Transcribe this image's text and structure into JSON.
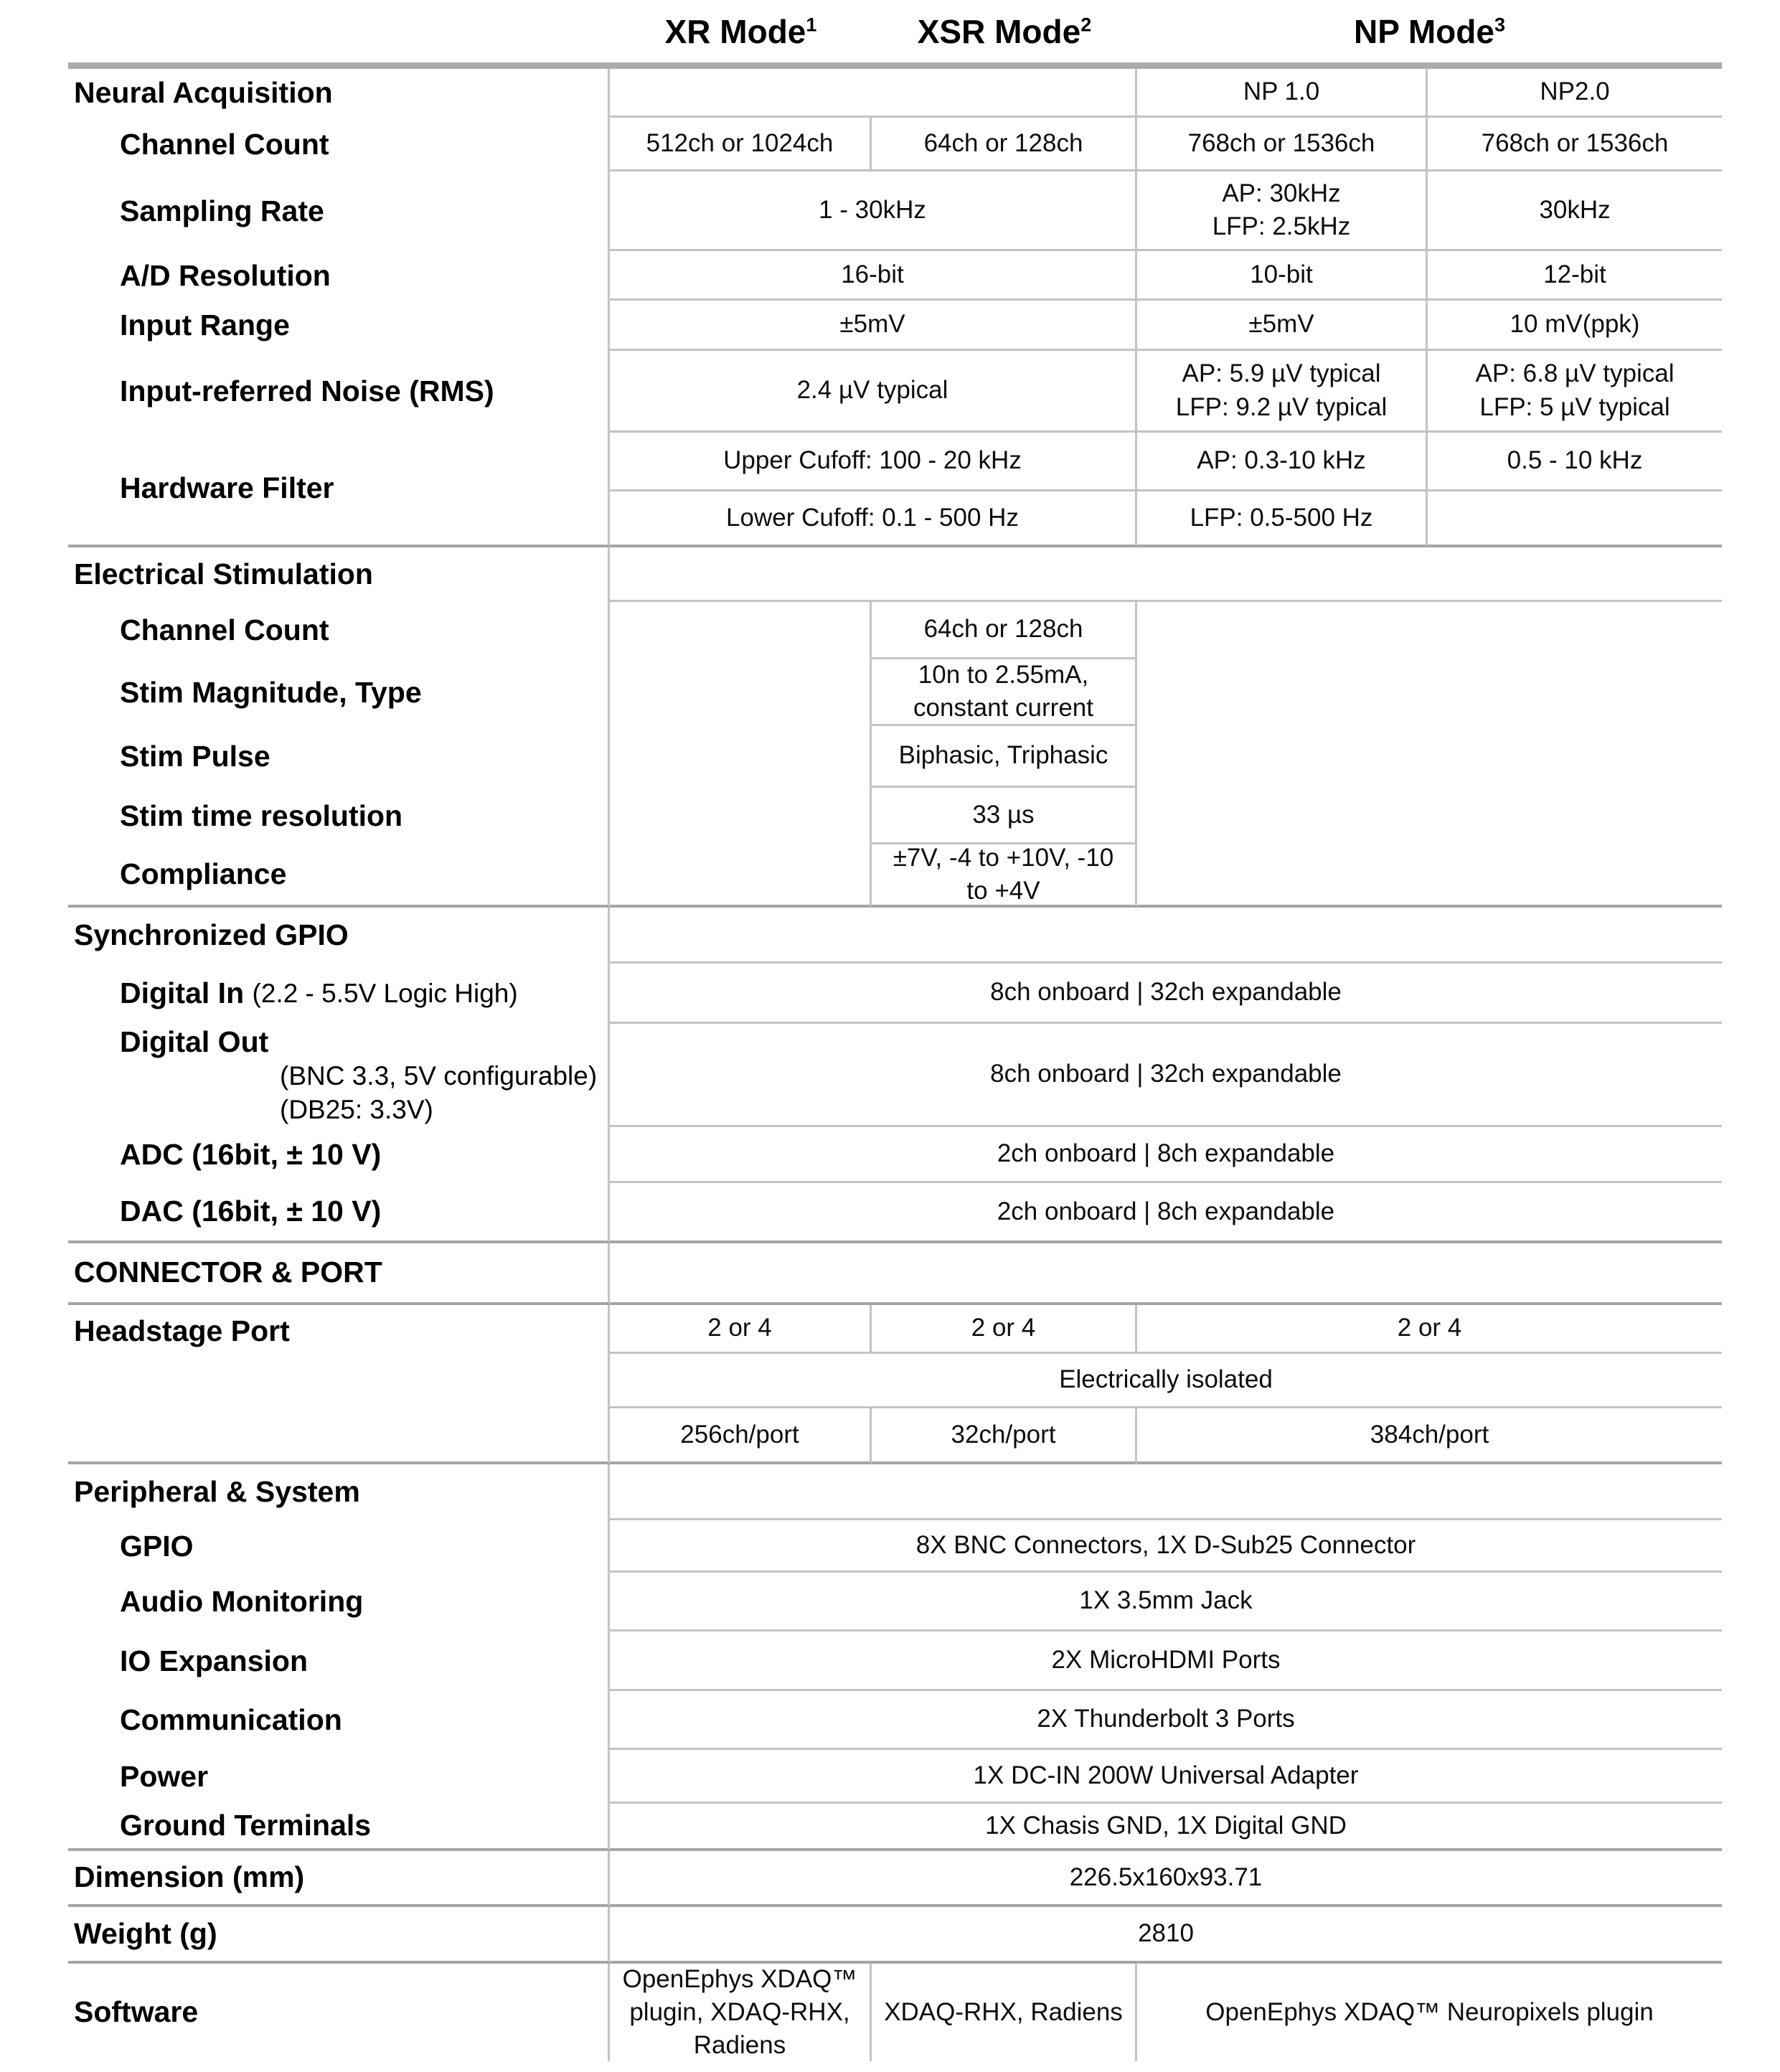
{
  "hdr": {
    "xr": {
      "t": "XR Mode",
      "sup": "1"
    },
    "xsr": {
      "t": "XSR Mode",
      "sup": "2"
    },
    "np": {
      "t": "NP Mode",
      "sup": "3"
    }
  },
  "na": {
    "title": "Neural Acquisition",
    "np1_col": "NP 1.0",
    "np2_col": "NP2.0",
    "channel_count": {
      "label": "Channel Count",
      "xr": "512ch or 1024ch",
      "xsr": "64ch or 128ch",
      "np1": "768ch or 1536ch",
      "np2": "768ch or 1536ch"
    },
    "sampling_rate": {
      "label": "Sampling Rate",
      "xr_xsr": "1 - 30kHz",
      "np1": "AP: 30kHz\nLFP: 2.5kHz",
      "np2": "30kHz"
    },
    "ad_resolution": {
      "label": "A/D Resolution",
      "xr_xsr": "16-bit",
      "np1": "10-bit",
      "np2": "12-bit"
    },
    "input_range": {
      "label": "Input Range",
      "xr_xsr": "±5mV",
      "np1": "±5mV",
      "np2": "10 mV(ppk)"
    },
    "input_noise": {
      "label": "Input-referred Noise (RMS)",
      "xr_xsr": "2.4 µV typical",
      "np1": "AP: 5.9 µV typical\nLFP: 9.2 µV typical",
      "np2": "AP: 6.8 µV typical\nLFP: 5 µV typical"
    },
    "hardware_filter": {
      "label": "Hardware Filter",
      "upper": {
        "xr_xsr": "Upper Cufoff: 100 - 20 kHz",
        "np1": "AP: 0.3-10 kHz",
        "np2": "0.5 - 10 kHz"
      },
      "lower": {
        "xr_xsr": "Lower Cufoff: 0.1 - 500 Hz",
        "np1": "LFP: 0.5-500 Hz"
      }
    }
  },
  "es": {
    "title": "Electrical Stimulation",
    "channel_count": {
      "label": "Channel Count",
      "xsr": "64ch or 128ch"
    },
    "stim_magnitude": {
      "label": "Stim Magnitude, Type",
      "xsr": "10n to 2.55mA,\nconstant current"
    },
    "stim_pulse": {
      "label": "Stim Pulse",
      "xsr": "Biphasic, Triphasic"
    },
    "stim_time": {
      "label": "Stim time resolution",
      "xsr": "33 µs"
    },
    "compliance": {
      "label": "Compliance",
      "xsr": "±7V, -4 to +10V, -10\nto +4V"
    }
  },
  "gpio": {
    "title": "Synchronized GPIO",
    "digital_in": {
      "label": "Digital In",
      "note": "(2.2 - 5.5V Logic High)",
      "value": "8ch onboard | 32ch expandable"
    },
    "digital_out": {
      "label": "Digital Out",
      "note1": "(BNC 3.3, 5V configurable)",
      "note2": "(DB25: 3.3V)",
      "value": "8ch onboard | 32ch expandable"
    },
    "adc": {
      "label": "ADC (16bit, ± 10 V)",
      "value": "2ch onboard | 8ch expandable"
    },
    "dac": {
      "label": "DAC (16bit, ± 10 V)",
      "value": "2ch onboard | 8ch expandable"
    }
  },
  "connector": {
    "title": "CONNECTOR & PORT"
  },
  "headstage": {
    "label": "Headstage Port",
    "port_count": {
      "xr": "2 or 4",
      "xsr": "2 or 4",
      "np": "2 or 4"
    },
    "isolation": "Electrically isolated",
    "channels": {
      "xr": "256ch/port",
      "xsr": "32ch/port",
      "np": "384ch/port"
    }
  },
  "periph": {
    "title": "Peripheral & System",
    "gpio": {
      "label": "GPIO",
      "value": "8X BNC Connectors, 1X D-Sub25 Connector"
    },
    "audio": {
      "label": "Audio Monitoring",
      "value": "1X 3.5mm Jack"
    },
    "io": {
      "label": "IO Expansion",
      "value": "2X MicroHDMI Ports"
    },
    "comm": {
      "label": "Communication",
      "value": "2X Thunderbolt 3 Ports"
    },
    "power": {
      "label": "Power",
      "value": "1X DC-IN 200W Universal Adapter"
    },
    "ground": {
      "label": "Ground Terminals",
      "value": "1X Chasis GND, 1X Digital GND"
    }
  },
  "dimension": {
    "label": "Dimension (mm)",
    "value": "226.5x160x93.71"
  },
  "weight": {
    "label": "Weight (g)",
    "value": "2810"
  },
  "software": {
    "label": "Software",
    "xr": "OpenEphys XDAQ™\nplugin, XDAQ-RHX,\nRadiens",
    "xsr": "XDAQ-RHX, Radiens",
    "np": "OpenEphys XDAQ™ Neuropixels plugin"
  }
}
